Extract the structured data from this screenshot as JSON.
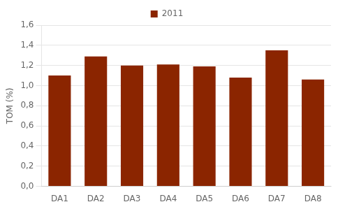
{
  "chart_data": {
    "type": "bar",
    "categories": [
      "DA1",
      "DA2",
      "DA3",
      "DA4",
      "DA5",
      "DA6",
      "DA7",
      "DA8"
    ],
    "series": [
      {
        "name": "2011",
        "color": "#8B2500",
        "values": [
          1.1,
          1.29,
          1.2,
          1.21,
          1.19,
          1.08,
          1.35,
          1.06
        ]
      }
    ],
    "ylabel": "TOM (%)",
    "ylim": [
      0,
      1.6
    ],
    "yticks": [
      {
        "value": 0.0,
        "label": "0,0"
      },
      {
        "value": 0.2,
        "label": "0,2"
      },
      {
        "value": 0.4,
        "label": "0,4"
      },
      {
        "value": 0.6,
        "label": "0,6"
      },
      {
        "value": 0.8,
        "label": "0,8"
      },
      {
        "value": 1.0,
        "label": "1,0"
      },
      {
        "value": 1.2,
        "label": "1,2"
      },
      {
        "value": 1.4,
        "label": "1,4"
      },
      {
        "value": 1.6,
        "label": "1,6"
      }
    ],
    "grid": true,
    "legend": "top"
  }
}
